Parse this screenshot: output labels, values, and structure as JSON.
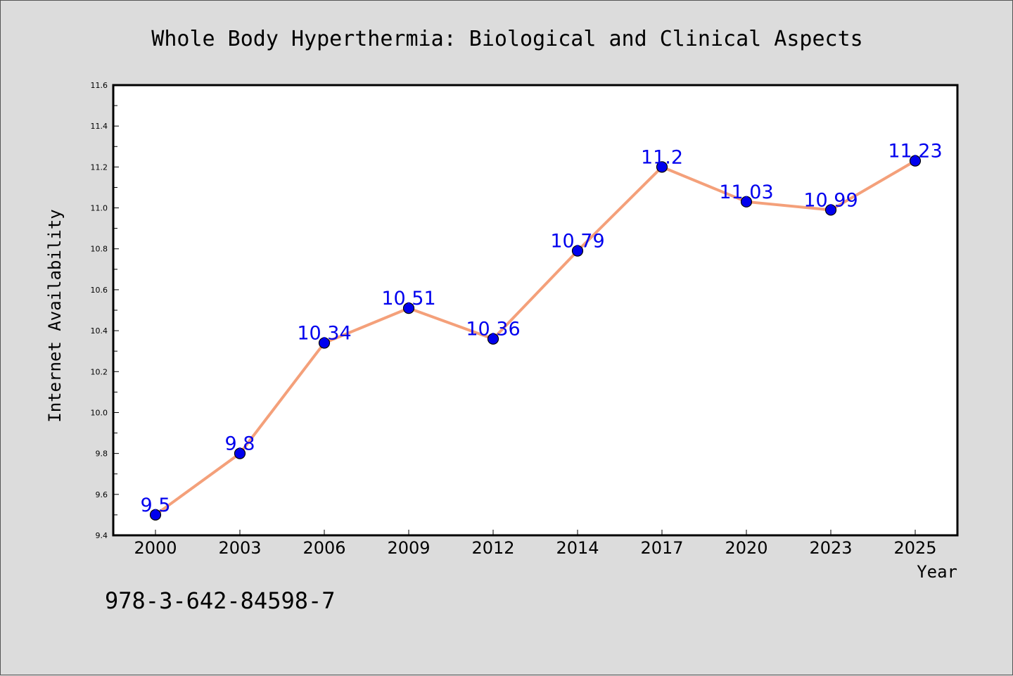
{
  "chart_data": {
    "type": "line",
    "title": "Whole Body Hyperthermia: Biological and Clinical Aspects",
    "xlabel": "Year",
    "ylabel": "Internet Availability",
    "categories": [
      "2000",
      "2003",
      "2006",
      "2009",
      "2012",
      "2014",
      "2017",
      "2020",
      "2023",
      "2025"
    ],
    "series": [
      {
        "values": [
          9.5,
          9.8,
          10.34,
          10.51,
          10.36,
          10.79,
          11.2,
          11.03,
          10.99,
          11.23
        ],
        "labels": [
          "9.5",
          "9.8",
          "10.34",
          "10.51",
          "10.36",
          "10.79",
          "11.2",
          "11.03",
          "10.99",
          "11.23"
        ],
        "line_color": "#f4a07a",
        "marker_color": "#0000ee"
      }
    ],
    "ylim": [
      9.4,
      11.6
    ],
    "yticks": [
      "9.4",
      "9.6",
      "9.8",
      "10.0",
      "10.2",
      "10.4",
      "10.6",
      "10.8",
      "11.0",
      "11.2",
      "11.4",
      "11.6"
    ],
    "grid": false,
    "legend": "none",
    "label_color": "#0000ee",
    "annotation": "978-3-642-84598-7"
  }
}
